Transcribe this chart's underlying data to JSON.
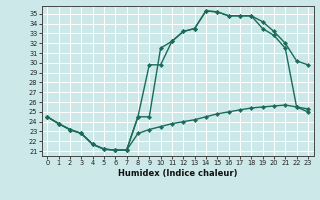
{
  "xlabel": "Humidex (Indice chaleur)",
  "bg_color": "#cce8e8",
  "grid_color": "#ffffff",
  "line_color": "#1a6b5a",
  "xlim": [
    -0.5,
    23.5
  ],
  "ylim": [
    20.5,
    35.8
  ],
  "xticks": [
    0,
    1,
    2,
    3,
    4,
    5,
    6,
    7,
    8,
    9,
    10,
    11,
    12,
    13,
    14,
    15,
    16,
    17,
    18,
    19,
    20,
    21,
    22,
    23
  ],
  "yticks": [
    21,
    22,
    23,
    24,
    25,
    26,
    27,
    28,
    29,
    30,
    31,
    32,
    33,
    34,
    35
  ],
  "line1_x": [
    0,
    1,
    2,
    3,
    4,
    5,
    6,
    7,
    8,
    9,
    10,
    11,
    12,
    13,
    14,
    15,
    16,
    17,
    18,
    19,
    20,
    21,
    22,
    23
  ],
  "line1_y": [
    24.5,
    23.8,
    23.2,
    22.8,
    21.7,
    21.2,
    21.1,
    21.1,
    22.8,
    23.2,
    23.5,
    23.8,
    24.0,
    24.2,
    24.5,
    24.8,
    25.0,
    25.2,
    25.4,
    25.5,
    25.6,
    25.7,
    25.5,
    25.3
  ],
  "line2_x": [
    0,
    1,
    2,
    3,
    4,
    5,
    6,
    7,
    8,
    9,
    10,
    11,
    12,
    13,
    14,
    15,
    16,
    17,
    18,
    19,
    20,
    21,
    22,
    23
  ],
  "line2_y": [
    24.5,
    23.8,
    23.2,
    22.8,
    21.7,
    21.2,
    21.1,
    21.1,
    24.5,
    24.5,
    31.5,
    32.2,
    33.2,
    33.5,
    35.3,
    35.2,
    34.8,
    34.8,
    34.8,
    34.2,
    33.2,
    32.0,
    30.2,
    29.8
  ],
  "line3_x": [
    0,
    1,
    2,
    3,
    4,
    5,
    6,
    7,
    8,
    9,
    10,
    11,
    12,
    13,
    14,
    15,
    16,
    17,
    18,
    19,
    20,
    21,
    22,
    23
  ],
  "line3_y": [
    24.5,
    23.8,
    23.2,
    22.8,
    21.7,
    21.2,
    21.1,
    21.1,
    24.5,
    29.8,
    29.8,
    32.2,
    33.2,
    33.5,
    35.3,
    35.2,
    34.8,
    34.8,
    34.8,
    33.5,
    32.8,
    31.5,
    25.5,
    25.0
  ]
}
